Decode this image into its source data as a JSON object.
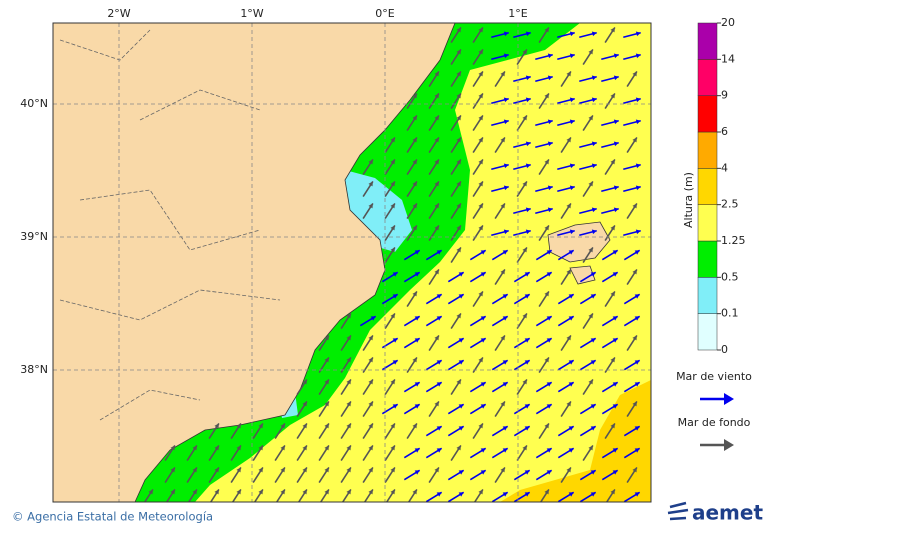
{
  "map": {
    "lon_labels": [
      "2°W",
      "1°W",
      "0°E",
      "1°E"
    ],
    "lat_labels": [
      "40°N",
      "39°N",
      "38°N"
    ],
    "colorbar": {
      "label": "Altura (m)",
      "ticks": [
        0,
        0.1,
        0.5,
        1.25,
        2.5,
        4,
        6,
        9,
        14,
        20
      ],
      "colors": [
        "#e0ffff",
        "#80eef8",
        "#00ee00",
        "#ffff50",
        "#ffd700",
        "#ffaa00",
        "#ff0000",
        "#ff0066",
        "#aa00aa"
      ]
    },
    "legend": [
      {
        "name": "Mar de viento",
        "color": "#0000ee"
      },
      {
        "name": "Mar de fondo",
        "color": "#555555"
      }
    ]
  },
  "footer": {
    "credit": "© Agencia Estatal de Meteorología",
    "brand": "aemet"
  }
}
